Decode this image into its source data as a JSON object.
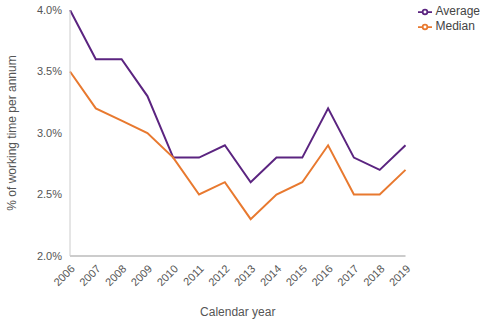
{
  "chart_data": {
    "type": "line",
    "x_label": "Calendar year",
    "y_label": "% of working time per annum",
    "categories": [
      "2006",
      "2007",
      "2008",
      "2009",
      "2010",
      "2011",
      "2012",
      "2013",
      "2014",
      "2015",
      "2016",
      "2017",
      "2018",
      "2019"
    ],
    "series": [
      {
        "name": "Average",
        "color": "#5b2480",
        "values": [
          4.0,
          3.6,
          3.6,
          3.3,
          2.8,
          2.8,
          2.9,
          2.6,
          2.8,
          2.8,
          3.2,
          2.8,
          2.7,
          2.9
        ]
      },
      {
        "name": "Median",
        "color": "#e8792f",
        "values": [
          3.5,
          3.2,
          3.1,
          3.0,
          2.8,
          2.5,
          2.6,
          2.3,
          2.5,
          2.6,
          2.9,
          2.5,
          2.5,
          2.7
        ]
      }
    ],
    "ylim": [
      2,
      4
    ],
    "yticks": [
      {
        "value": 2,
        "label": "2.0%"
      },
      {
        "value": 2.5,
        "label": "2.5%"
      },
      {
        "value": 3,
        "label": "3.0%"
      },
      {
        "value": 3.5,
        "label": "3.5%"
      },
      {
        "value": 4,
        "label": "4.0%"
      }
    ],
    "grid": false,
    "legend": "upper right"
  }
}
